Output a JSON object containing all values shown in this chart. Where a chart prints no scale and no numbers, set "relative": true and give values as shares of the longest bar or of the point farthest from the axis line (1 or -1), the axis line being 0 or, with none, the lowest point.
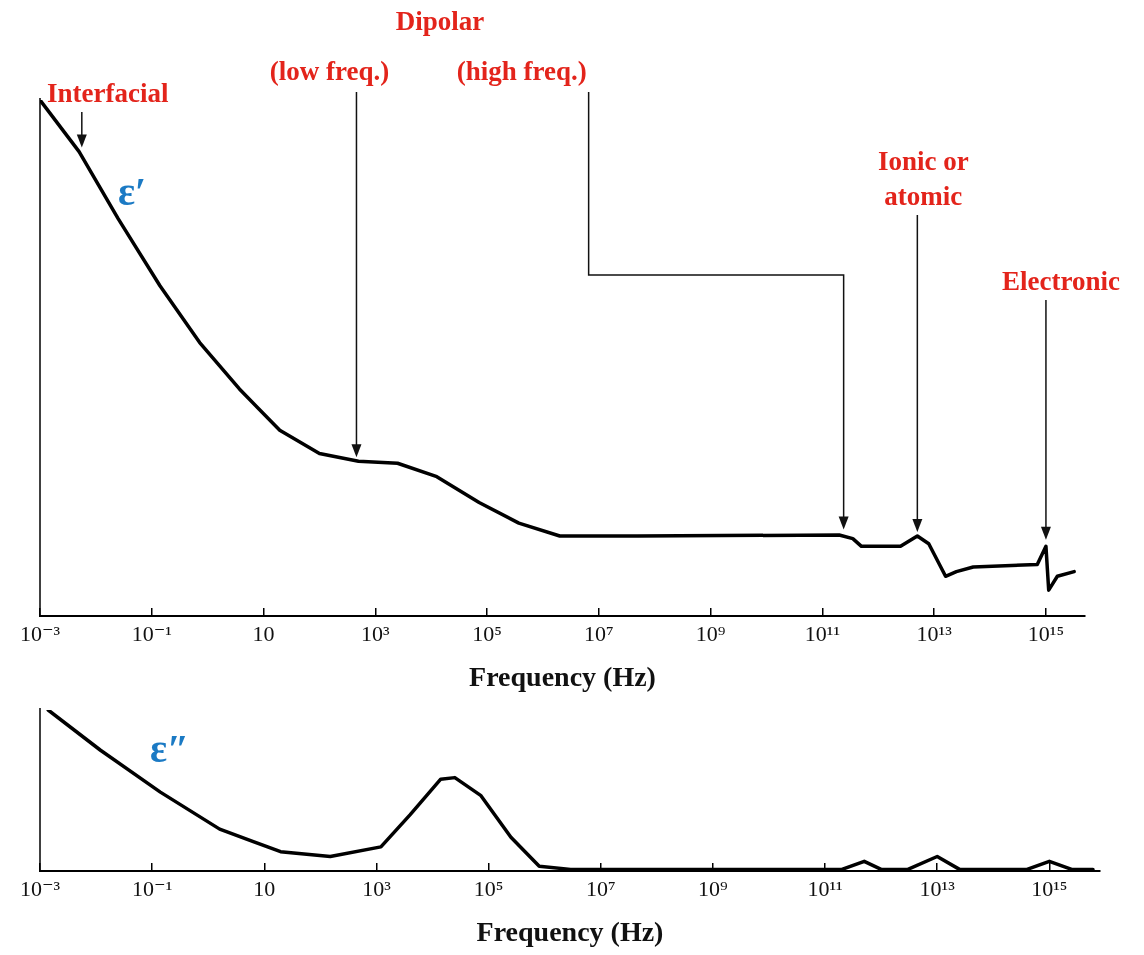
{
  "chart_data": [
    {
      "type": "line",
      "relative": true,
      "xlabel": "Frequency (Hz)",
      "log": "x",
      "xlim": [
        0.001,
        5000000000000000.0
      ],
      "xticks": [
        {
          "value": 0.001,
          "label": "10⁻³"
        },
        {
          "value": 0.1,
          "label": "10⁻¹"
        },
        10,
        {
          "value": 1000,
          "label": "10³"
        },
        {
          "value": 100000,
          "label": "10⁵"
        },
        {
          "value": 10000000,
          "label": "10⁷"
        },
        {
          "value": 1000000000,
          "label": "10⁹"
        },
        {
          "value": 100000000000,
          "label": "10¹¹"
        },
        {
          "value": 10000000000000,
          "label": "10¹³"
        },
        {
          "value": 1000000000000000,
          "label": "10¹⁵"
        }
      ],
      "x": [
        0.001,
        0.005,
        0.025,
        0.14,
        0.72,
        3.7,
        19.5,
        100,
        500,
        2500,
        12600,
        72000,
        370000,
        2000000,
        50000000,
        200000000000,
        350000000000,
        500000000000,
        2500000000000,
        5000000000000,
        8000000000000,
        16000000000000,
        25000000000000,
        50000000000000,
        700000000000000,
        1000000000000000,
        1120000000000000,
        1600000000000000,
        3200000000000000
      ],
      "series": [
        {
          "name": "ε′",
          "color": "#000000",
          "values": [
            1,
            0.9,
            0.77,
            0.64,
            0.53,
            0.44,
            0.36,
            0.315,
            0.3,
            0.296,
            0.27,
            0.22,
            0.18,
            0.155,
            0.155,
            0.157,
            0.15,
            0.135,
            0.135,
            0.155,
            0.14,
            0.077,
            0.086,
            0.095,
            0.1,
            0.135,
            0.05,
            0.077,
            0.086
          ]
        }
      ],
      "annotations": [
        {
          "text": "Interfacial",
          "x": 0.0056,
          "y": 0.9
        },
        "Dipolar",
        {
          "text": "(low freq.)",
          "x": 460,
          "y": 0.3
        },
        {
          "text": "(high freq.)",
          "x": 240000000000,
          "y": 0.16
        },
        {
          "text": "Ionic or atomic",
          "x": 5000000000000,
          "y": 0.155
        },
        {
          "text": "Electronic",
          "x": 1000000000000000,
          "y": 0.14
        }
      ]
    },
    {
      "type": "line",
      "relative": true,
      "xlabel": "Frequency (Hz)",
      "log": "x",
      "xlim": [
        0.001,
        8000000000000000.0
      ],
      "xticks": [
        {
          "value": 0.001,
          "label": "10⁻³"
        },
        {
          "value": 0.1,
          "label": "10⁻¹"
        },
        10,
        {
          "value": 1000,
          "label": "10³"
        },
        {
          "value": 100000,
          "label": "10⁵"
        },
        {
          "value": 10000000,
          "label": "10⁷"
        },
        {
          "value": 1000000000,
          "label": "10⁹"
        },
        {
          "value": 100000000000,
          "label": "10¹¹"
        },
        {
          "value": 10000000000000,
          "label": "10¹³"
        },
        {
          "value": 1000000000000000,
          "label": "10¹⁵"
        }
      ],
      "x": [
        0.0014,
        0.012,
        0.14,
        1.6,
        19.5,
        150,
        1200,
        4000,
        14000,
        25000,
        72000,
        250000,
        800000,
        2900000,
        200000000000,
        500000000000,
        1000000000000,
        3000000000000,
        10000000000000,
        25000000000000,
        400000000000000,
        1000000000000000,
        2500000000000000,
        6000000000000000
      ],
      "series": [
        {
          "name": "ε″",
          "color": "#000000",
          "values": [
            1,
            0.75,
            0.49,
            0.26,
            0.12,
            0.09,
            0.15,
            0.35,
            0.57,
            0.58,
            0.47,
            0.21,
            0.03,
            0.01,
            0.01,
            0.06,
            0.01,
            0.01,
            0.09,
            0.01,
            0.01,
            0.06,
            0.01,
            0.01
          ]
        }
      ]
    }
  ]
}
